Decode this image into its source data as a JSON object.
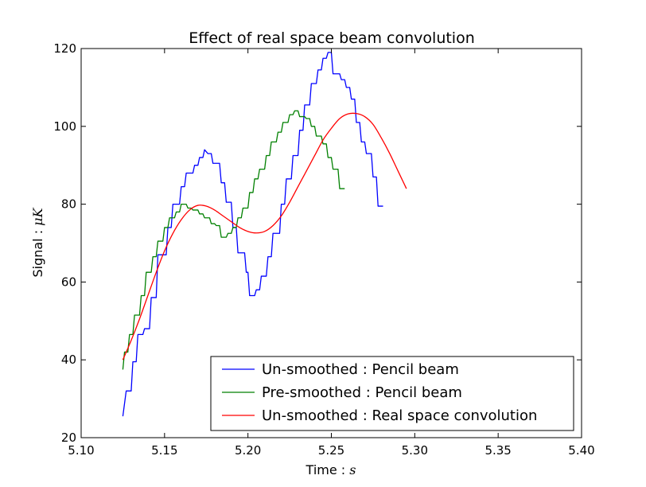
{
  "chart_data": {
    "type": "line",
    "title": "Effect of real space beam convolution",
    "xlabel_prefix": "Time : ",
    "xlabel_unit": "s",
    "ylabel_prefix": "Signal : ",
    "ylabel_unit": "μK",
    "xlim": [
      5.1,
      5.4
    ],
    "ylim": [
      20,
      120
    ],
    "xticks": [
      "5.10",
      "5.15",
      "5.20",
      "5.25",
      "5.30",
      "5.35",
      "5.40"
    ],
    "yticks": [
      "20",
      "40",
      "60",
      "80",
      "100",
      "120"
    ],
    "legend_position": "lower-right",
    "series": [
      {
        "name": "Un-smoothed : Pencil beam",
        "color": "#0000ff",
        "style": "step",
        "points": [
          [
            5.125,
            25.5
          ],
          [
            5.127,
            32
          ],
          [
            5.13,
            32
          ],
          [
            5.131,
            39.5
          ],
          [
            5.133,
            39.5
          ],
          [
            5.134,
            46.5
          ],
          [
            5.137,
            46.5
          ],
          [
            5.138,
            48
          ],
          [
            5.141,
            48
          ],
          [
            5.142,
            56
          ],
          [
            5.145,
            56
          ],
          [
            5.146,
            67
          ],
          [
            5.151,
            67
          ],
          [
            5.152,
            74
          ],
          [
            5.154,
            74
          ],
          [
            5.155,
            80
          ],
          [
            5.159,
            80
          ],
          [
            5.16,
            84.5
          ],
          [
            5.162,
            84.5
          ],
          [
            5.163,
            88
          ],
          [
            5.167,
            88
          ],
          [
            5.168,
            90
          ],
          [
            5.17,
            90
          ],
          [
            5.171,
            92
          ],
          [
            5.173,
            92
          ],
          [
            5.174,
            94
          ],
          [
            5.176,
            93
          ],
          [
            5.178,
            93
          ],
          [
            5.179,
            90.5
          ],
          [
            5.183,
            90.5
          ],
          [
            5.184,
            85.5
          ],
          [
            5.186,
            85.5
          ],
          [
            5.187,
            80.5
          ],
          [
            5.19,
            80.5
          ],
          [
            5.191,
            74
          ],
          [
            5.193,
            74
          ],
          [
            5.194,
            67.5
          ],
          [
            5.198,
            67.5
          ],
          [
            5.199,
            62.5
          ],
          [
            5.2,
            62.5
          ],
          [
            5.201,
            56.5
          ],
          [
            5.204,
            56.5
          ],
          [
            5.205,
            58
          ],
          [
            5.207,
            58
          ],
          [
            5.208,
            61.5
          ],
          [
            5.211,
            61.5
          ],
          [
            5.212,
            66.5
          ],
          [
            5.214,
            66.5
          ],
          [
            5.215,
            72.5
          ],
          [
            5.219,
            72.5
          ],
          [
            5.22,
            80
          ],
          [
            5.222,
            80
          ],
          [
            5.223,
            86.5
          ],
          [
            5.226,
            86.5
          ],
          [
            5.227,
            92.5
          ],
          [
            5.23,
            92.5
          ],
          [
            5.231,
            99
          ],
          [
            5.233,
            99
          ],
          [
            5.234,
            105.5
          ],
          [
            5.237,
            105.5
          ],
          [
            5.238,
            111
          ],
          [
            5.241,
            111
          ],
          [
            5.242,
            114.5
          ],
          [
            5.244,
            114.5
          ],
          [
            5.245,
            117.5
          ],
          [
            5.247,
            117.5
          ],
          [
            5.248,
            119
          ],
          [
            5.25,
            119
          ],
          [
            5.251,
            113.5
          ],
          [
            5.255,
            113.5
          ],
          [
            5.256,
            112
          ],
          [
            5.258,
            112
          ],
          [
            5.259,
            110
          ],
          [
            5.261,
            110
          ],
          [
            5.262,
            107
          ],
          [
            5.264,
            107
          ],
          [
            5.265,
            101
          ],
          [
            5.267,
            101
          ],
          [
            5.268,
            96
          ],
          [
            5.27,
            96
          ],
          [
            5.271,
            93
          ],
          [
            5.274,
            93
          ],
          [
            5.275,
            87
          ],
          [
            5.277,
            87
          ],
          [
            5.278,
            79.5
          ],
          [
            5.281,
            79.5
          ]
        ]
      },
      {
        "name": "Pre-smoothed : Pencil beam",
        "color": "#008000",
        "style": "step",
        "points": [
          [
            5.125,
            37.5
          ],
          [
            5.126,
            42
          ],
          [
            5.128,
            42
          ],
          [
            5.129,
            46.5
          ],
          [
            5.131,
            46.5
          ],
          [
            5.132,
            51.5
          ],
          [
            5.135,
            51.5
          ],
          [
            5.136,
            56.5
          ],
          [
            5.138,
            56.5
          ],
          [
            5.139,
            62.5
          ],
          [
            5.142,
            62.5
          ],
          [
            5.143,
            66.5
          ],
          [
            5.145,
            66.5
          ],
          [
            5.146,
            70.5
          ],
          [
            5.149,
            70.5
          ],
          [
            5.15,
            74
          ],
          [
            5.152,
            74
          ],
          [
            5.153,
            76.5
          ],
          [
            5.156,
            76.5
          ],
          [
            5.157,
            78
          ],
          [
            5.159,
            78
          ],
          [
            5.16,
            80
          ],
          [
            5.163,
            80
          ],
          [
            5.164,
            79
          ],
          [
            5.166,
            79
          ],
          [
            5.167,
            78.5
          ],
          [
            5.17,
            78.5
          ],
          [
            5.171,
            77.5
          ],
          [
            5.173,
            77.5
          ],
          [
            5.174,
            76.5
          ],
          [
            5.177,
            76.5
          ],
          [
            5.178,
            75
          ],
          [
            5.18,
            75
          ],
          [
            5.181,
            74.5
          ],
          [
            5.183,
            74.5
          ],
          [
            5.184,
            71.5
          ],
          [
            5.187,
            71.5
          ],
          [
            5.188,
            72.5
          ],
          [
            5.19,
            72.5
          ],
          [
            5.191,
            74
          ],
          [
            5.193,
            74
          ],
          [
            5.194,
            76.5
          ],
          [
            5.196,
            76.5
          ],
          [
            5.197,
            79
          ],
          [
            5.2,
            79
          ],
          [
            5.201,
            83
          ],
          [
            5.203,
            83
          ],
          [
            5.204,
            86.5
          ],
          [
            5.206,
            86.5
          ],
          [
            5.207,
            89
          ],
          [
            5.21,
            89
          ],
          [
            5.211,
            92.5
          ],
          [
            5.213,
            92.5
          ],
          [
            5.214,
            96
          ],
          [
            5.217,
            96
          ],
          [
            5.218,
            98.5
          ],
          [
            5.22,
            98.5
          ],
          [
            5.221,
            101
          ],
          [
            5.224,
            101
          ],
          [
            5.225,
            103
          ],
          [
            5.227,
            103
          ],
          [
            5.228,
            104
          ],
          [
            5.23,
            104
          ],
          [
            5.231,
            102.5
          ],
          [
            5.234,
            102.5
          ],
          [
            5.235,
            102
          ],
          [
            5.237,
            102
          ],
          [
            5.238,
            100
          ],
          [
            5.24,
            100
          ],
          [
            5.241,
            97.5
          ],
          [
            5.244,
            97.5
          ],
          [
            5.245,
            95.5
          ],
          [
            5.247,
            95.5
          ],
          [
            5.248,
            92
          ],
          [
            5.25,
            92
          ],
          [
            5.251,
            89
          ],
          [
            5.254,
            89
          ],
          [
            5.255,
            84
          ],
          [
            5.258,
            84
          ]
        ]
      },
      {
        "name": "Un-smoothed : Real space convolution",
        "color": "#ff0000",
        "style": "smooth",
        "points": [
          [
            5.125,
            40
          ],
          [
            5.13,
            45
          ],
          [
            5.135,
            50.5
          ],
          [
            5.14,
            56.5
          ],
          [
            5.145,
            62.5
          ],
          [
            5.15,
            68
          ],
          [
            5.155,
            72.5
          ],
          [
            5.16,
            76
          ],
          [
            5.165,
            78.5
          ],
          [
            5.17,
            79.7
          ],
          [
            5.175,
            79.5
          ],
          [
            5.18,
            78.5
          ],
          [
            5.185,
            77
          ],
          [
            5.19,
            75.5
          ],
          [
            5.195,
            74
          ],
          [
            5.2,
            73
          ],
          [
            5.205,
            72.6
          ],
          [
            5.21,
            73
          ],
          [
            5.215,
            74.5
          ],
          [
            5.22,
            77
          ],
          [
            5.225,
            80.5
          ],
          [
            5.23,
            84.5
          ],
          [
            5.235,
            88.5
          ],
          [
            5.24,
            92.5
          ],
          [
            5.245,
            96.5
          ],
          [
            5.25,
            99.5
          ],
          [
            5.255,
            102
          ],
          [
            5.26,
            103.2
          ],
          [
            5.265,
            103.3
          ],
          [
            5.27,
            102.5
          ],
          [
            5.275,
            100.5
          ],
          [
            5.28,
            97
          ],
          [
            5.285,
            93
          ],
          [
            5.29,
            88.5
          ],
          [
            5.295,
            84
          ]
        ]
      }
    ]
  }
}
